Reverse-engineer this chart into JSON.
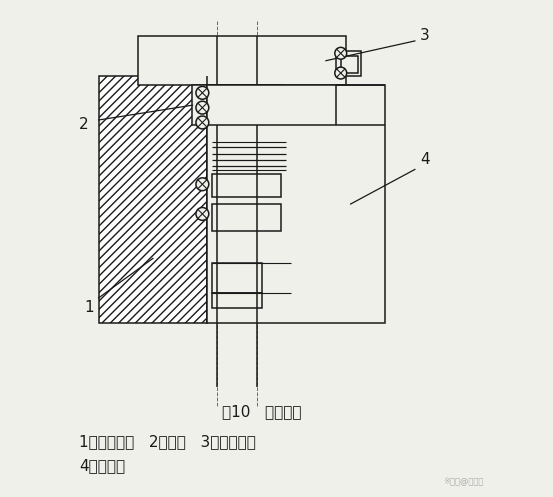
{
  "bg_color": "#f0f0eb",
  "line_color": "#1a1a1a",
  "title": "图10   防震工具",
  "caption_line1": "1、调整螺栓   2、弹簧   3、防震支撑",
  "caption_line2": "4、固定体",
  "title_fontsize": 11,
  "caption_fontsize": 11,
  "watermark": "※柔号@投智知",
  "label_1": "1",
  "label_2": "2",
  "label_3": "3",
  "label_4": "4"
}
